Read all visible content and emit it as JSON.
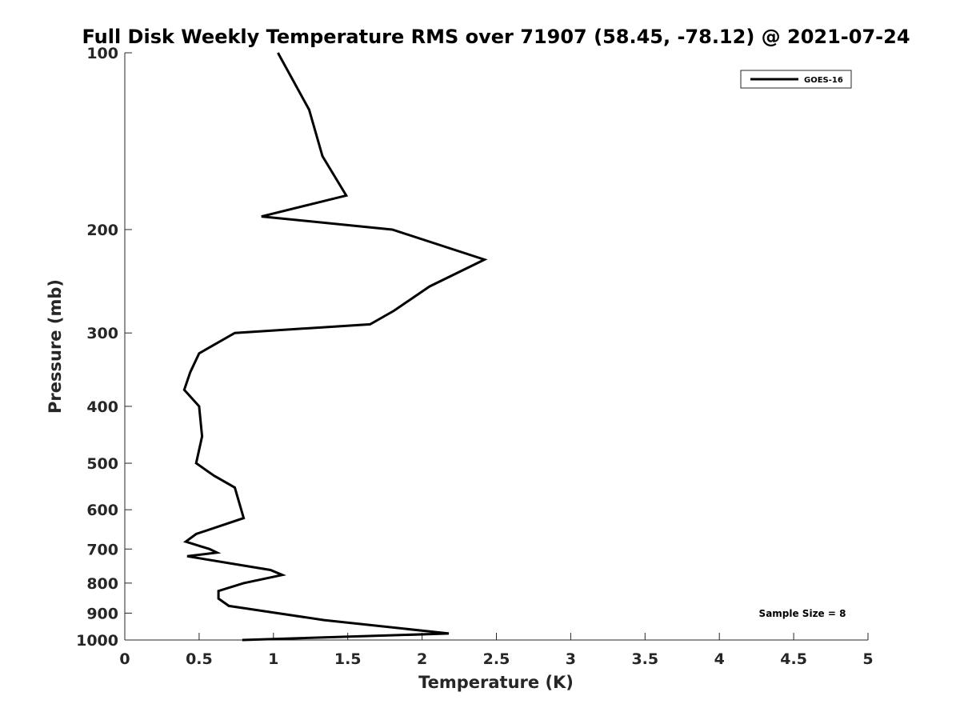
{
  "chart_data": {
    "type": "line",
    "title": "Full Disk Weekly Temperature RMS over 71907 (58.45, -78.12) @ 2021-07-24",
    "xlabel": "Temperature (K)",
    "ylabel": "Pressure (mb)",
    "xlim": [
      0,
      5
    ],
    "ylim": [
      100,
      1000
    ],
    "y_scale": "log",
    "y_reversed": true,
    "x_ticks": [
      "0",
      "0.5",
      "1",
      "1.5",
      "2",
      "2.5",
      "3",
      "3.5",
      "4",
      "4.5",
      "5"
    ],
    "x_tick_values": [
      0,
      0.5,
      1,
      1.5,
      2,
      2.5,
      3,
      3.5,
      4,
      4.5,
      5
    ],
    "y_ticks": [
      "100",
      "200",
      "300",
      "400",
      "500",
      "600",
      "700",
      "800",
      "900",
      "1000"
    ],
    "y_tick_values": [
      100,
      200,
      300,
      400,
      500,
      600,
      700,
      800,
      900,
      1000
    ],
    "grid": false,
    "legend_position": "top-right",
    "annotation": "Sample Size = 8",
    "series": [
      {
        "name": "GOES-16",
        "color": "#000000",
        "points": [
          [
            1.03,
            100
          ],
          [
            1.24,
            125
          ],
          [
            1.33,
            150
          ],
          [
            1.49,
            175
          ],
          [
            0.92,
            190
          ],
          [
            1.8,
            200
          ],
          [
            2.42,
            225
          ],
          [
            2.05,
            250
          ],
          [
            1.81,
            275
          ],
          [
            1.65,
            290
          ],
          [
            0.74,
            300
          ],
          [
            0.5,
            325
          ],
          [
            0.44,
            350
          ],
          [
            0.4,
            375
          ],
          [
            0.5,
            400
          ],
          [
            0.52,
            450
          ],
          [
            0.48,
            500
          ],
          [
            0.6,
            525
          ],
          [
            0.74,
            550
          ],
          [
            0.8,
            620
          ],
          [
            0.48,
            660
          ],
          [
            0.41,
            680
          ],
          [
            0.57,
            700
          ],
          [
            0.62,
            710
          ],
          [
            0.42,
            720
          ],
          [
            0.98,
            760
          ],
          [
            1.06,
            775
          ],
          [
            0.8,
            800
          ],
          [
            0.63,
            825
          ],
          [
            0.63,
            850
          ],
          [
            0.7,
            875
          ],
          [
            1.34,
            925
          ],
          [
            2.18,
            975
          ],
          [
            0.79,
            1000
          ]
        ]
      }
    ]
  }
}
